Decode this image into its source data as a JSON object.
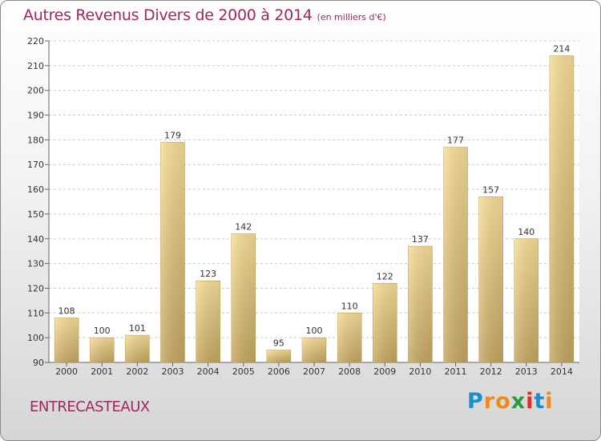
{
  "header": {
    "title": "Autres Revenus Divers de 2000 à 2014",
    "unit": "(en milliers d'€)"
  },
  "footer": {
    "commune": "ENTRECASTEAUX",
    "brand_letters": [
      "P",
      "r",
      "o",
      "x",
      "i",
      "t",
      "i"
    ],
    "brand_colors": [
      "#1a8fd0",
      "#f08a1c",
      "#f08a1c",
      "#2a9a3c",
      "#e03020",
      "#1a8fd0",
      "#f08a1c"
    ]
  },
  "colors": {
    "bar_light": "#f6dd96",
    "bar_dark": "#c4a560",
    "grid": "#cccccc",
    "title": "#a02860"
  },
  "chart_data": {
    "type": "bar",
    "title": "Autres Revenus Divers de 2000 à 2014",
    "subtitle": "(en milliers d'€)",
    "xlabel": "",
    "ylabel": "",
    "categories": [
      "2000",
      "2001",
      "2002",
      "2003",
      "2004",
      "2005",
      "2006",
      "2007",
      "2008",
      "2009",
      "2010",
      "2011",
      "2012",
      "2013",
      "2014"
    ],
    "values": [
      108,
      100,
      101,
      179,
      123,
      142,
      95,
      100,
      110,
      122,
      137,
      177,
      157,
      140,
      214
    ],
    "ylim": [
      90,
      220
    ],
    "yticks": [
      90,
      100,
      110,
      120,
      130,
      140,
      150,
      160,
      170,
      180,
      190,
      200,
      210,
      220
    ],
    "grid": true,
    "data_labels": true
  }
}
